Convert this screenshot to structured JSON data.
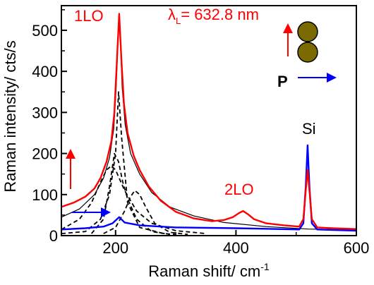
{
  "chart_data": {
    "type": "line",
    "xlabel": "Raman shift/ cm",
    "xlabel_sup": "-1",
    "ylabel": "Raman intensity/ cts/s",
    "xlim": [
      110,
      600
    ],
    "ylim": [
      0,
      560
    ],
    "xticks": [
      200,
      400,
      600
    ],
    "yticks": [
      0,
      100,
      200,
      300,
      400,
      500
    ],
    "grid": false,
    "legend": "none",
    "annotations": {
      "peak_1lo": "1LO",
      "peak_2lo": "2LO",
      "peak_si": "Si",
      "wavelength_symbol": "λ",
      "wavelength_sub": "L",
      "wavelength_value": "= 632.8 nm",
      "polarization": "P"
    },
    "colors": {
      "parallel": "#ff0000",
      "perpendicular": "#0000ff",
      "fit": "#000000",
      "nanoparticle": "#7a6a00"
    },
    "series": [
      {
        "color": "#ff0000",
        "style": "solid",
        "points": [
          [
            110,
            70
          ],
          [
            130,
            80
          ],
          [
            150,
            95
          ],
          [
            165,
            115
          ],
          [
            175,
            140
          ],
          [
            185,
            180
          ],
          [
            193,
            230
          ],
          [
            198,
            300
          ],
          [
            202,
            420
          ],
          [
            206,
            540
          ],
          [
            210,
            420
          ],
          [
            214,
            320
          ],
          [
            220,
            250
          ],
          [
            230,
            195
          ],
          [
            240,
            160
          ],
          [
            255,
            120
          ],
          [
            275,
            85
          ],
          [
            300,
            58
          ],
          [
            330,
            42
          ],
          [
            360,
            35
          ],
          [
            380,
            38
          ],
          [
            395,
            45
          ],
          [
            405,
            55
          ],
          [
            412,
            60
          ],
          [
            420,
            52
          ],
          [
            430,
            40
          ],
          [
            450,
            30
          ],
          [
            480,
            25
          ],
          [
            505,
            22
          ],
          [
            512,
            40
          ],
          [
            516,
            110
          ],
          [
            519,
            160
          ],
          [
            522,
            110
          ],
          [
            526,
            40
          ],
          [
            535,
            20
          ],
          [
            560,
            18
          ],
          [
            600,
            16
          ]
        ]
      },
      {
        "color": "#0000ff",
        "style": "solid",
        "points": [
          [
            110,
            15
          ],
          [
            150,
            18
          ],
          [
            180,
            22
          ],
          [
            195,
            30
          ],
          [
            206,
            45
          ],
          [
            215,
            32
          ],
          [
            240,
            25
          ],
          [
            300,
            20
          ],
          [
            400,
            18
          ],
          [
            505,
            15
          ],
          [
            512,
            30
          ],
          [
            516,
            120
          ],
          [
            519,
            220
          ],
          [
            522,
            120
          ],
          [
            526,
            30
          ],
          [
            535,
            15
          ],
          [
            600,
            12
          ]
        ]
      },
      {
        "color": "#000000",
        "style": "solid",
        "points": [
          [
            110,
            45
          ],
          [
            140,
            65
          ],
          [
            165,
            100
          ],
          [
            180,
            140
          ],
          [
            190,
            190
          ],
          [
            197,
            260
          ],
          [
            201,
            360
          ],
          [
            204,
            470
          ],
          [
            206,
            530
          ],
          [
            208,
            470
          ],
          [
            211,
            360
          ],
          [
            216,
            270
          ],
          [
            225,
            200
          ],
          [
            240,
            150
          ],
          [
            260,
            105
          ],
          [
            290,
            70
          ],
          [
            330,
            48
          ],
          [
            380,
            32
          ],
          [
            450,
            22
          ],
          [
            520,
            16
          ],
          [
            600,
            14
          ]
        ]
      },
      {
        "color": "#000000",
        "style": "dashed",
        "points": [
          [
            110,
            5
          ],
          [
            150,
            10
          ],
          [
            175,
            40
          ],
          [
            190,
            100
          ],
          [
            200,
            200
          ],
          [
            205,
            350
          ],
          [
            210,
            240
          ],
          [
            220,
            80
          ],
          [
            240,
            20
          ],
          [
            280,
            5
          ],
          [
            300,
            3
          ]
        ]
      },
      {
        "color": "#000000",
        "style": "dashed",
        "points": [
          [
            110,
            15
          ],
          [
            140,
            40
          ],
          [
            160,
            80
          ],
          [
            175,
            130
          ],
          [
            185,
            160
          ],
          [
            193,
            170
          ],
          [
            200,
            160
          ],
          [
            215,
            110
          ],
          [
            235,
            60
          ],
          [
            260,
            30
          ],
          [
            300,
            12
          ],
          [
            350,
            5
          ]
        ]
      },
      {
        "color": "#000000",
        "style": "dashed",
        "points": [
          [
            160,
            5
          ],
          [
            180,
            40
          ],
          [
            190,
            120
          ],
          [
            198,
            200
          ],
          [
            205,
            180
          ],
          [
            212,
            130
          ],
          [
            220,
            90
          ],
          [
            235,
            40
          ],
          [
            260,
            10
          ],
          [
            290,
            3
          ]
        ]
      },
      {
        "color": "#000000",
        "style": "dashed",
        "points": [
          [
            180,
            5
          ],
          [
            200,
            20
          ],
          [
            215,
            60
          ],
          [
            225,
            95
          ],
          [
            232,
            110
          ],
          [
            240,
            100
          ],
          [
            250,
            70
          ],
          [
            265,
            30
          ],
          [
            290,
            8
          ],
          [
            320,
            3
          ]
        ]
      }
    ]
  }
}
